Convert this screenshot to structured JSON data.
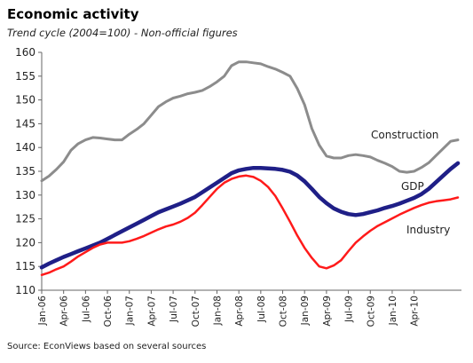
{
  "header": {
    "title": "Economic activity",
    "subtitle": "Trend cycle (2004=100) - Non-official figures"
  },
  "footer": {
    "source": "Source: EconViews based on several sources"
  },
  "chart_data": {
    "type": "line",
    "title": "Economic activity",
    "subtitle": "Trend cycle (2004=100) - Non-official figures",
    "xlabel": "",
    "ylabel": "",
    "ylim": [
      110,
      160
    ],
    "yticks": [
      110,
      115,
      120,
      125,
      130,
      135,
      140,
      145,
      150,
      155,
      160
    ],
    "x_start": "Jan-06",
    "x_end": "Jun-10",
    "x_tick_labels": [
      "Jan-06",
      "Apr-06",
      "Jul-06",
      "Oct-06",
      "Jan-07",
      "Apr-07",
      "Jul-07",
      "Oct-07",
      "Jan-08",
      "Apr-08",
      "Jul-08",
      "Oct-08",
      "Jan-09",
      "Apr-09",
      "Jul-09",
      "Oct-09",
      "Jan-10",
      "Apr-10"
    ],
    "x_tick_step_months": 3,
    "grid": false,
    "legend": "inline labels",
    "series": [
      {
        "name": "Construction",
        "color": "#8c8c8c",
        "values": [
          133.0,
          134.0,
          135.4,
          137.0,
          139.4,
          140.8,
          141.6,
          142.1,
          142.0,
          141.8,
          141.6,
          141.6,
          142.8,
          143.8,
          145.0,
          146.8,
          148.6,
          149.6,
          150.4,
          150.8,
          151.3,
          151.6,
          152.0,
          152.8,
          153.8,
          155.0,
          157.2,
          158.0,
          158.0,
          157.8,
          157.6,
          157.0,
          156.5,
          155.8,
          155.0,
          152.4,
          149.0,
          144.0,
          140.5,
          138.2,
          137.8,
          137.8,
          138.3,
          138.5,
          138.3,
          138.0,
          137.3,
          136.7,
          136.0,
          135.0,
          134.8,
          135.0,
          135.8,
          136.8,
          138.3,
          139.8,
          141.3,
          141.6
        ]
      },
      {
        "name": "GDP",
        "color": "#1f1f87",
        "values": [
          114.8,
          115.6,
          116.3,
          117.0,
          117.6,
          118.2,
          118.8,
          119.4,
          120.0,
          120.8,
          121.6,
          122.4,
          123.2,
          124.0,
          124.8,
          125.6,
          126.4,
          127.0,
          127.6,
          128.2,
          128.9,
          129.6,
          130.6,
          131.6,
          132.6,
          133.6,
          134.6,
          135.2,
          135.5,
          135.7,
          135.7,
          135.6,
          135.5,
          135.3,
          134.9,
          134.1,
          132.9,
          131.3,
          129.6,
          128.3,
          127.2,
          126.5,
          126.0,
          125.8,
          126.0,
          126.4,
          126.8,
          127.3,
          127.7,
          128.2,
          128.8,
          129.4,
          130.2,
          131.3,
          132.7,
          134.1,
          135.5,
          136.7
        ]
      },
      {
        "name": "Industry",
        "color": "#ff1a1a",
        "values": [
          113.2,
          113.7,
          114.4,
          115.0,
          116.0,
          117.1,
          118.0,
          118.9,
          119.6,
          120.0,
          120.0,
          120.0,
          120.3,
          120.8,
          121.4,
          122.1,
          122.8,
          123.4,
          123.8,
          124.4,
          125.2,
          126.3,
          127.9,
          129.6,
          131.3,
          132.6,
          133.4,
          133.9,
          134.1,
          133.8,
          133.0,
          131.7,
          129.8,
          127.2,
          124.4,
          121.5,
          118.9,
          116.8,
          115.0,
          114.6,
          115.2,
          116.3,
          118.2,
          120.0,
          121.3,
          122.5,
          123.5,
          124.3,
          125.1,
          125.9,
          126.6,
          127.3,
          127.9,
          128.4,
          128.7,
          128.9,
          129.1,
          129.5
        ]
      }
    ]
  }
}
